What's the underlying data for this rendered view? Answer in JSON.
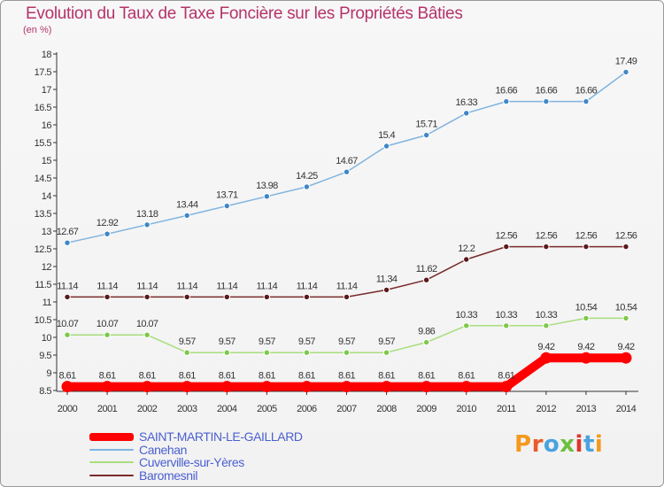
{
  "page": {
    "title": "Evolution du Taux de Taxe Foncière sur les Propriétés Bâties",
    "unit": "(en %)",
    "logo": "Proxiti",
    "logo_colors": [
      "#f39a1e",
      "#e85b2a",
      "#4aa3df",
      "#6cbf3f",
      "#e0352b",
      "#4aa3df",
      "#f39a1e"
    ]
  },
  "chart_data": {
    "type": "line",
    "title": "Evolution du Taux de Taxe Foncière sur les Propriétés Bâties",
    "ylabel": "(en %)",
    "xlabel": "",
    "ylim": [
      8.5,
      18
    ],
    "yticks": [
      "8.5",
      "9",
      "9.5",
      "10",
      "10.5",
      "11",
      "11.5",
      "12",
      "12.5",
      "13",
      "13.5",
      "14",
      "14.5",
      "15",
      "15.5",
      "16",
      "16.5",
      "17",
      "17.5",
      "18"
    ],
    "x": [
      "2000",
      "2001",
      "2002",
      "2003",
      "2004",
      "2005",
      "2006",
      "2007",
      "2008",
      "2009",
      "2010",
      "2011",
      "2012",
      "2013",
      "2014"
    ],
    "grid": false,
    "legend_position": "bottom-left",
    "series": [
      {
        "name": "SAINT-MARTIN-LE-GAILLARD",
        "color": "#ff0000",
        "bold": true,
        "values": [
          8.61,
          8.61,
          8.61,
          8.61,
          8.61,
          8.61,
          8.61,
          8.61,
          8.61,
          8.61,
          8.61,
          8.61,
          9.42,
          9.42,
          9.42
        ],
        "labels": [
          "8.61",
          "8.61",
          "8.61",
          "8.61",
          "8.61",
          "8.61",
          "8.61",
          "8.61",
          "8.61",
          "8.61",
          "8.61",
          "8.61",
          "9.42",
          "9.42",
          "9.42"
        ]
      },
      {
        "name": "Canehan",
        "color": "#80b4e0",
        "marker_color": "#3f86c8",
        "bold": false,
        "values": [
          12.67,
          12.92,
          13.18,
          13.44,
          13.71,
          13.98,
          14.25,
          14.67,
          15.4,
          15.71,
          16.33,
          16.66,
          16.66,
          16.66,
          17.49
        ],
        "labels": [
          "12.67",
          "12.92",
          "13.18",
          "13.44",
          "13.71",
          "13.98",
          "14.25",
          "14.67",
          "15.4",
          "15.71",
          "16.33",
          "16.66",
          "16.66",
          "16.66",
          "17.49"
        ]
      },
      {
        "name": "Cuverville-sur-Yères",
        "color": "#a8dd7c",
        "marker_color": "#7dc84a",
        "bold": false,
        "values": [
          10.07,
          10.07,
          10.07,
          9.57,
          9.57,
          9.57,
          9.57,
          9.57,
          9.57,
          9.86,
          10.33,
          10.33,
          10.33,
          10.54,
          10.54
        ],
        "labels": [
          "10.07",
          "10.07",
          "10.07",
          "9.57",
          "9.57",
          "9.57",
          "9.57",
          "9.57",
          "9.57",
          "9.86",
          "10.33",
          "10.33",
          "10.33",
          "10.54",
          "10.54"
        ]
      },
      {
        "name": "Baromesnil",
        "color": "#7a2a2a",
        "marker_color": "#5a1a1a",
        "bold": false,
        "values": [
          11.14,
          11.14,
          11.14,
          11.14,
          11.14,
          11.14,
          11.14,
          11.14,
          11.34,
          11.62,
          12.2,
          12.56,
          12.56,
          12.56,
          12.56
        ],
        "labels": [
          "11.14",
          "11.14",
          "11.14",
          "11.14",
          "11.14",
          "11.14",
          "11.14",
          "11.14",
          "11.34",
          "11.62",
          "12.2",
          "12.56",
          "12.56",
          "12.56",
          "12.56"
        ]
      }
    ]
  }
}
